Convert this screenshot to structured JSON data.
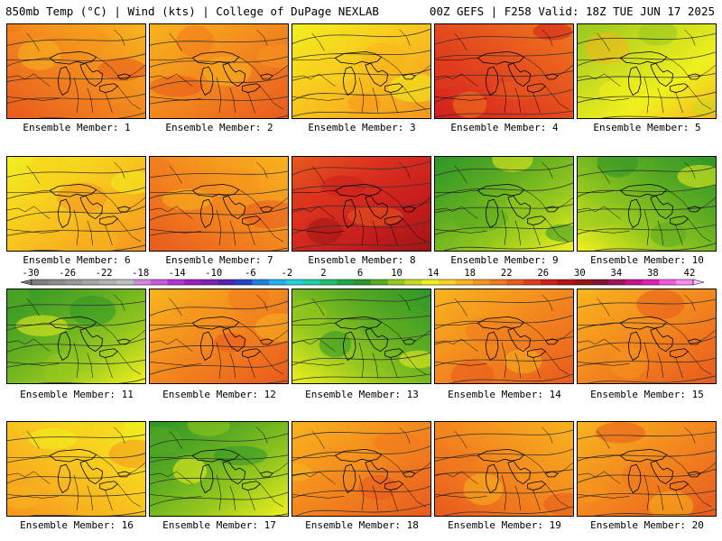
{
  "header": {
    "title": "850mb Temp (°C) | Wind (kts) | College of DuPage NEXLAB",
    "run_info": "00Z GEFS | F258 Valid: 18Z TUE JUN 17 2025"
  },
  "members": [
    {
      "label": "Ensemble Member: 1",
      "dominant": "orange"
    },
    {
      "label": "Ensemble Member: 2",
      "dominant": "orange"
    },
    {
      "label": "Ensemble Member: 3",
      "dominant": "yellow"
    },
    {
      "label": "Ensemble Member: 4",
      "dominant": "red"
    },
    {
      "label": "Ensemble Member: 5",
      "dominant": "yellow-green"
    },
    {
      "label": "Ensemble Member: 6",
      "dominant": "yellow"
    },
    {
      "label": "Ensemble Member: 7",
      "dominant": "orange"
    },
    {
      "label": "Ensemble Member: 8",
      "dominant": "dark-red"
    },
    {
      "label": "Ensemble Member: 9",
      "dominant": "green"
    },
    {
      "label": "Ensemble Member: 10",
      "dominant": "green"
    },
    {
      "label": "Ensemble Member: 11",
      "dominant": "green"
    },
    {
      "label": "Ensemble Member: 12",
      "dominant": "orange"
    },
    {
      "label": "Ensemble Member: 13",
      "dominant": "green"
    },
    {
      "label": "Ensemble Member: 14",
      "dominant": "orange"
    },
    {
      "label": "Ensemble Member: 15",
      "dominant": "orange"
    },
    {
      "label": "Ensemble Member: 16",
      "dominant": "yellow"
    },
    {
      "label": "Ensemble Member: 17",
      "dominant": "green"
    },
    {
      "label": "Ensemble Member: 18",
      "dominant": "orange"
    },
    {
      "label": "Ensemble Member: 19",
      "dominant": "orange"
    },
    {
      "label": "Ensemble Member: 20",
      "dominant": "orange"
    }
  ],
  "colorbar": {
    "labels": [
      "-30",
      "-26",
      "-22",
      "-18",
      "-14",
      "-10",
      "-6",
      "-2",
      "2",
      "6",
      "10",
      "14",
      "18",
      "22",
      "26",
      "30",
      "34",
      "38",
      "42"
    ],
    "colors": [
      "#7f7f7f",
      "#8c8c8c",
      "#999999",
      "#a6a6a6",
      "#b3b3b3",
      "#c0c0c0",
      "#d28adf",
      "#c65cd9",
      "#b633d1",
      "#9a1fc0",
      "#7a22b5",
      "#5222b0",
      "#2244c8",
      "#1f7fe0",
      "#22b0f0",
      "#22d0e0",
      "#22d0a8",
      "#1ec070",
      "#1ca84a",
      "#2c9628",
      "#5aaa22",
      "#96c81e",
      "#c8dc1e",
      "#f0f01e",
      "#f8d21e",
      "#f8b41e",
      "#f5961e",
      "#f0781e",
      "#e85a1e",
      "#e03c1e",
      "#d21e1e",
      "#b41414",
      "#961414",
      "#821432",
      "#a0145a",
      "#c8148c",
      "#e01eb4",
      "#f05adc",
      "#f88cf0"
    ]
  },
  "palette": {
    "dark-red": [
      "#a01414",
      "#c81e1e",
      "#dc321e",
      "#e85a1e"
    ],
    "red": [
      "#d21e1e",
      "#e03c1e",
      "#e85a1e",
      "#f0781e"
    ],
    "orange": [
      "#e85a1e",
      "#f0781e",
      "#f5961e",
      "#f8b41e"
    ],
    "yellow": [
      "#f5961e",
      "#f8b41e",
      "#f8d21e",
      "#f0f01e"
    ],
    "yellow-green": [
      "#f8b41e",
      "#f0f01e",
      "#c8dc1e",
      "#96c81e"
    ],
    "green": [
      "#f0f01e",
      "#96c81e",
      "#5aaa22",
      "#2c9628"
    ]
  }
}
